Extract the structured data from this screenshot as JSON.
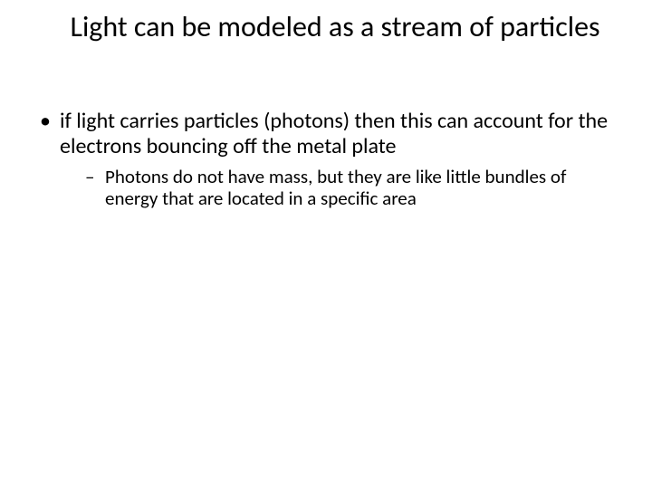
{
  "title": "Light can be modeled as a stream of particles",
  "bullets": {
    "level1": [
      {
        "text": "if light carries particles (photons) then this can account for the electrons bouncing off the metal plate",
        "children": [
          "Photons do not have mass, but they are like little bundles of energy that are located in a specific area"
        ]
      }
    ]
  },
  "colors": {
    "background": "#ffffff",
    "text": "#000000"
  },
  "typography": {
    "title_fontsize": 32,
    "level1_fontsize": 24,
    "level2_fontsize": 21,
    "font_family": "Calibri"
  }
}
